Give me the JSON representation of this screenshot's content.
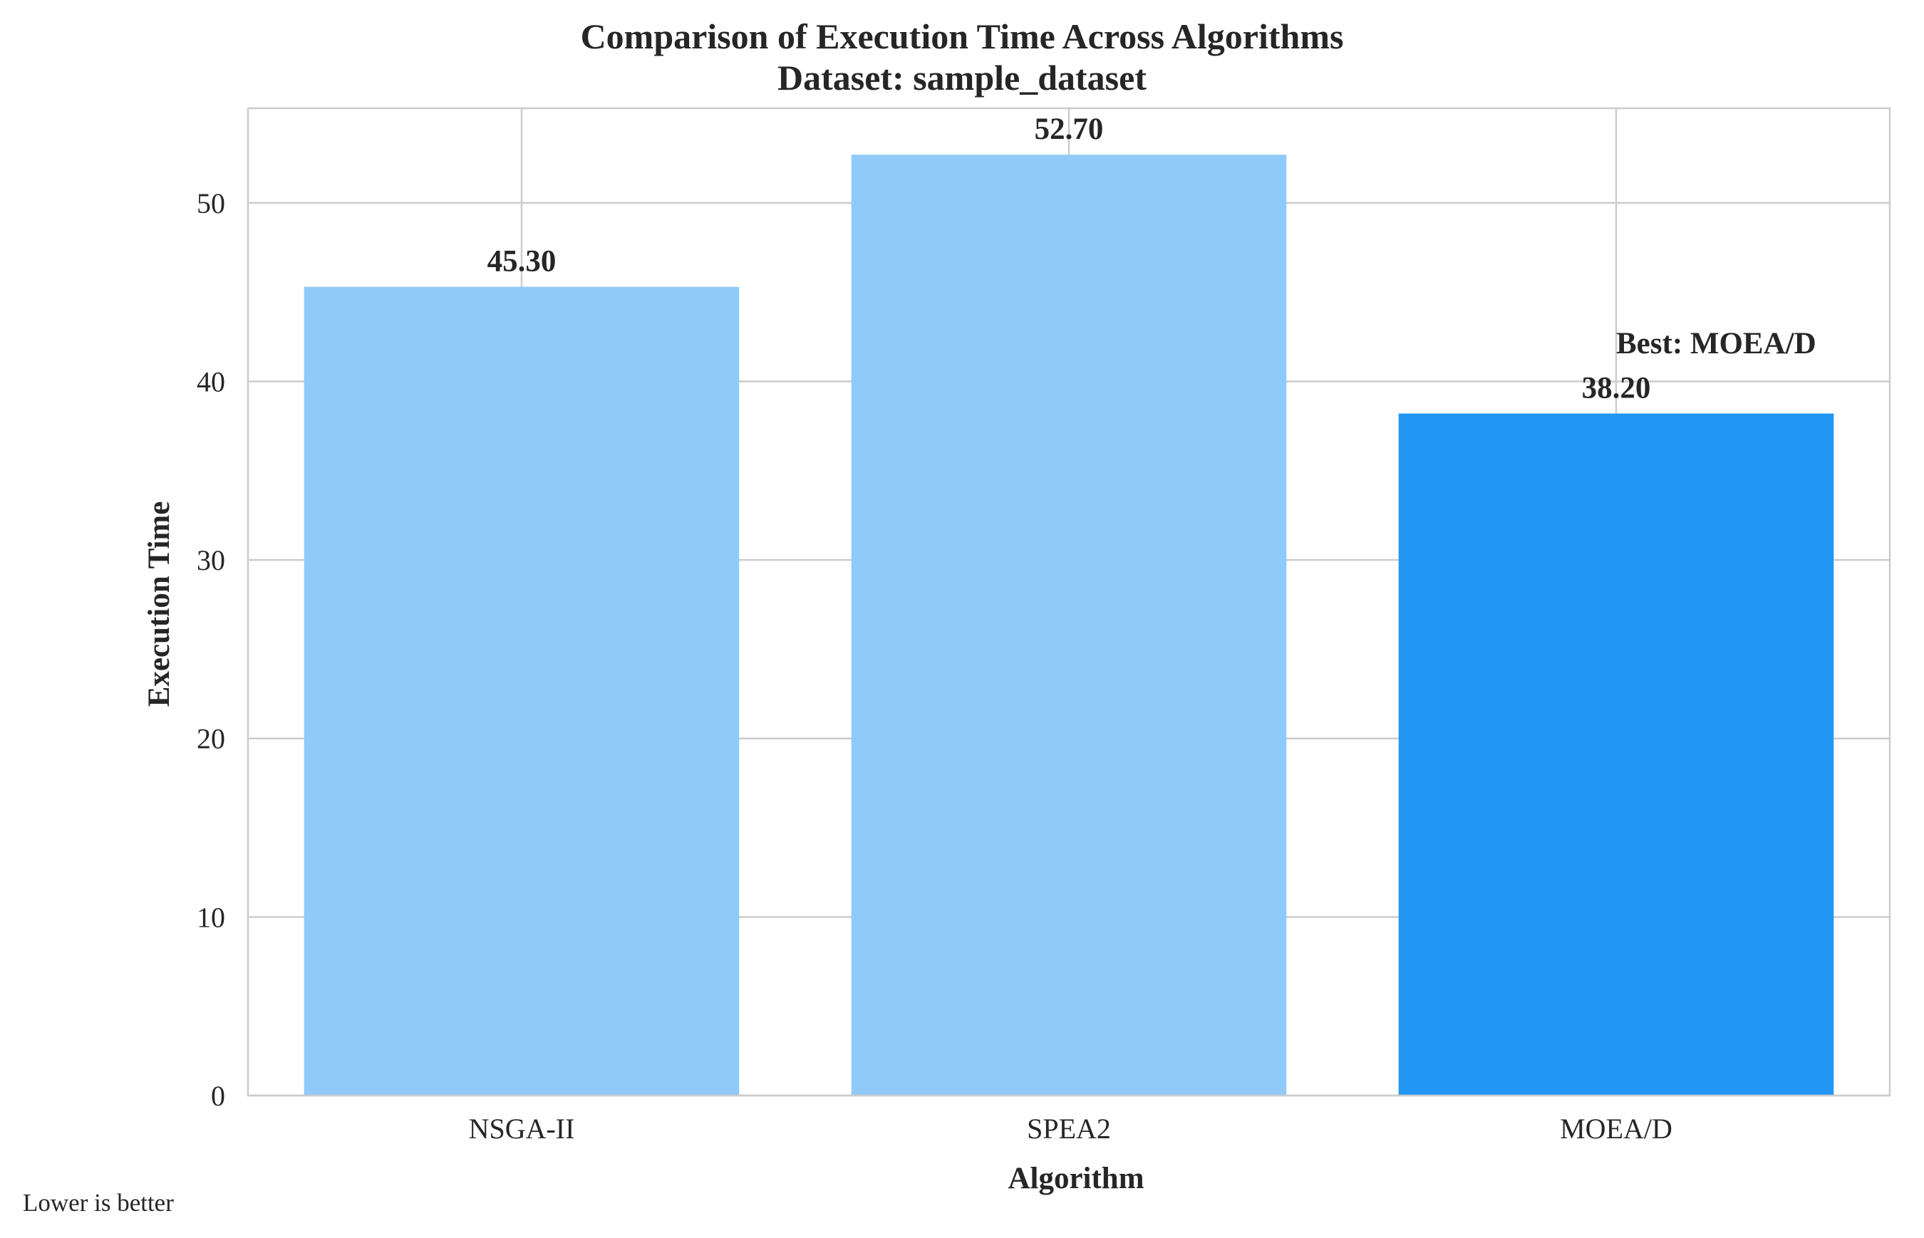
{
  "chart_data": {
    "type": "bar",
    "title": "Comparison of Execution Time Across Algorithms",
    "subtitle": "Dataset: sample_dataset",
    "xlabel": "Algorithm",
    "ylabel": "Execution Time",
    "categories": [
      "NSGA-II",
      "SPEA2",
      "MOEA/D"
    ],
    "values": [
      45.3,
      52.7,
      38.2
    ],
    "data_labels": [
      "45.30",
      "52.70",
      "38.20"
    ],
    "ylim": [
      0,
      55.3
    ],
    "yticks": [
      0,
      10,
      20,
      30,
      40,
      50
    ],
    "grid": true,
    "bar_colors": [
      "#90caf9",
      "#90caf9",
      "#2196f3"
    ],
    "highlight": {
      "category": "MOEA/D",
      "color": "#2196f3"
    },
    "annotation": "Best: MOEA/D",
    "footnote": "Lower is better"
  },
  "colors": {
    "default_bar": "#90caf9",
    "best_bar": "#2196f3",
    "grid": "#cccccc",
    "text": "#262626"
  }
}
